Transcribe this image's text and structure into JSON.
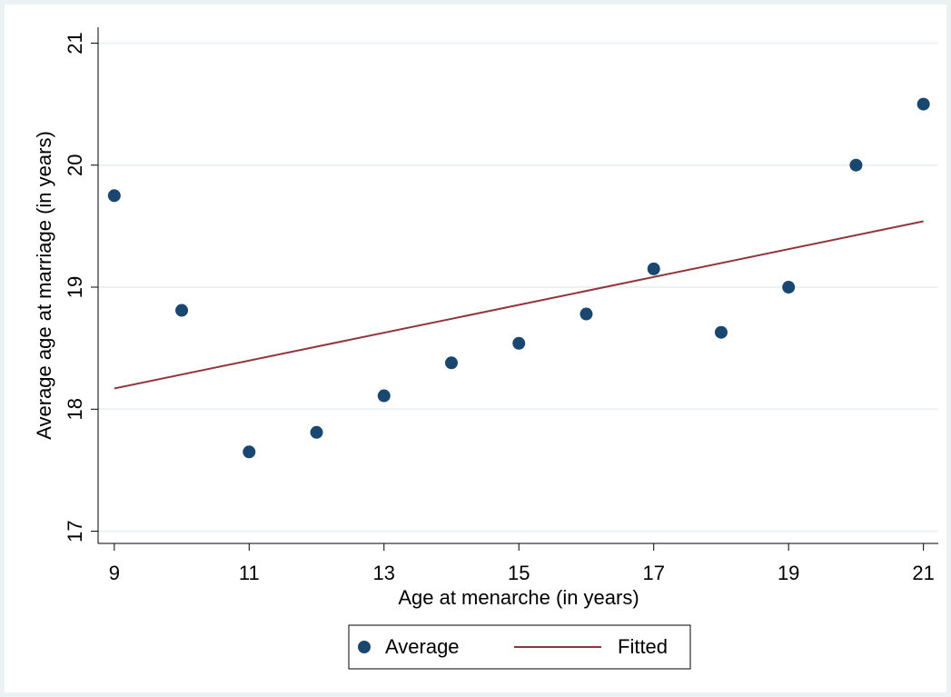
{
  "chart_data": {
    "type": "scatter",
    "x_label": "Age at menarche (in years)",
    "y_label": "Average age at marriage (in years)",
    "xlim": [
      8.76,
      21.22
    ],
    "ylim": [
      16.9,
      21.13
    ],
    "xticks": [
      9,
      11,
      13,
      15,
      17,
      19,
      21
    ],
    "yticks": [
      17,
      18,
      19,
      20,
      21
    ],
    "grid": true,
    "legend": "bottom",
    "series": [
      {
        "name": "Average",
        "type": "scatter",
        "color": "#1a476f",
        "x": [
          9,
          10,
          11,
          12,
          13,
          14,
          15,
          16,
          17,
          18,
          19,
          20,
          21
        ],
        "values": [
          19.75,
          18.81,
          17.65,
          17.81,
          18.11,
          18.38,
          18.54,
          18.78,
          19.15,
          18.63,
          19.0,
          20.0,
          20.5
        ]
      },
      {
        "name": "Fitted",
        "type": "line",
        "color": "#90353b",
        "x": [
          9,
          21
        ],
        "values": [
          18.17,
          19.54
        ]
      }
    ]
  }
}
